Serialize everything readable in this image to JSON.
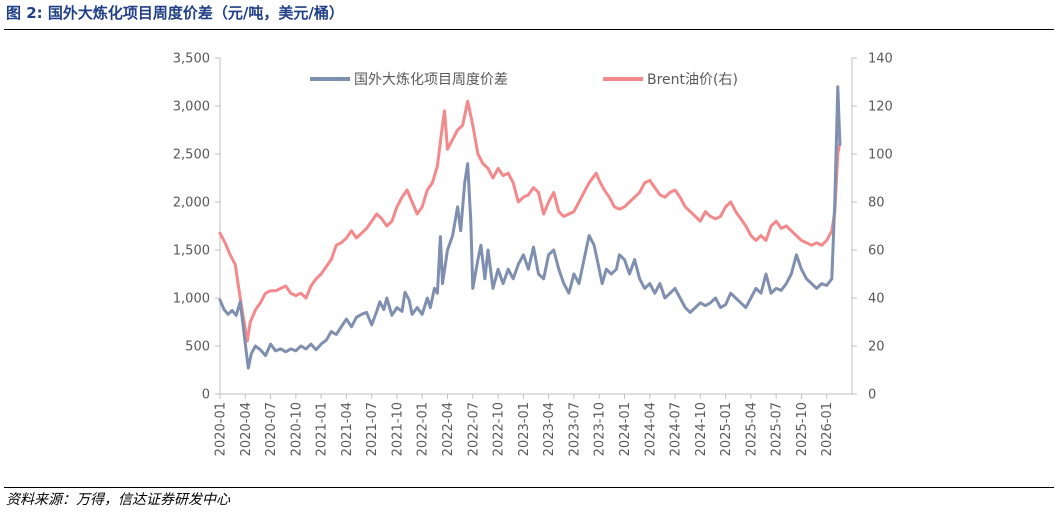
{
  "figure": {
    "title": "图 2:  国外大炼化项目周度价差（元/吨，美元/桶）",
    "source": "资料来源：万得，信达证券研发中心"
  },
  "colors": {
    "spread": "#7f8fb0",
    "brent": "#f4888a",
    "title": "#1f3f87",
    "axis": "#bfbfbf",
    "tick": "#595959"
  },
  "chart_data": {
    "type": "line",
    "title": "国外大炼化项目周度价差（元/吨，美元/桶）",
    "x_tick_labels": [
      "2020-01",
      "2020-04",
      "2020-07",
      "2020-10",
      "2021-01",
      "2021-04",
      "2021-07",
      "2021-10",
      "2022-01",
      "2022-04",
      "2022-07",
      "2022-10",
      "2023-01",
      "2023-04",
      "2023-07",
      "2023-10",
      "2024-01",
      "2024-04",
      "2024-07",
      "2024-10",
      "2025-01",
      "2025-04",
      "2025-07",
      "2025-10",
      "2026-01"
    ],
    "x_range": [
      2020.0,
      2026.25
    ],
    "y_left": {
      "label": "元/吨",
      "range": [
        0,
        3500
      ],
      "ticks": [
        0,
        500,
        1000,
        1500,
        2000,
        2500,
        3000,
        3500
      ],
      "tick_labels": [
        "0",
        "500",
        "1,000",
        "1,500",
        "2,000",
        "2,500",
        "3,000",
        "3,500"
      ]
    },
    "y_right": {
      "label": "美元/桶",
      "range": [
        0,
        140
      ],
      "ticks": [
        0,
        20,
        40,
        60,
        80,
        100,
        120,
        140
      ],
      "tick_labels": [
        "0",
        "20",
        "40",
        "60",
        "80",
        "100",
        "120",
        "140"
      ]
    },
    "legend": {
      "position": "top",
      "items": [
        "国外大炼化项目周度价差",
        "Brent油价(右)"
      ]
    },
    "series": [
      {
        "name": "国外大炼化项目周度价差",
        "axis": "left",
        "points": [
          [
            2020.0,
            980
          ],
          [
            2020.04,
            880
          ],
          [
            2020.08,
            830
          ],
          [
            2020.12,
            870
          ],
          [
            2020.16,
            820
          ],
          [
            2020.2,
            960
          ],
          [
            2020.23,
            700
          ],
          [
            2020.25,
            520
          ],
          [
            2020.28,
            270
          ],
          [
            2020.31,
            420
          ],
          [
            2020.35,
            500
          ],
          [
            2020.4,
            460
          ],
          [
            2020.45,
            400
          ],
          [
            2020.5,
            520
          ],
          [
            2020.55,
            450
          ],
          [
            2020.6,
            470
          ],
          [
            2020.65,
            440
          ],
          [
            2020.7,
            470
          ],
          [
            2020.75,
            450
          ],
          [
            2020.8,
            500
          ],
          [
            2020.85,
            470
          ],
          [
            2020.9,
            520
          ],
          [
            2020.95,
            460
          ],
          [
            2021.0,
            520
          ],
          [
            2021.05,
            560
          ],
          [
            2021.1,
            650
          ],
          [
            2021.15,
            620
          ],
          [
            2021.2,
            700
          ],
          [
            2021.25,
            780
          ],
          [
            2021.3,
            700
          ],
          [
            2021.35,
            800
          ],
          [
            2021.4,
            830
          ],
          [
            2021.45,
            850
          ],
          [
            2021.5,
            720
          ],
          [
            2021.55,
            860
          ],
          [
            2021.58,
            960
          ],
          [
            2021.62,
            880
          ],
          [
            2021.65,
            1000
          ],
          [
            2021.7,
            820
          ],
          [
            2021.75,
            900
          ],
          [
            2021.8,
            860
          ],
          [
            2021.83,
            1060
          ],
          [
            2021.87,
            980
          ],
          [
            2021.9,
            830
          ],
          [
            2021.95,
            900
          ],
          [
            2022.0,
            830
          ],
          [
            2022.05,
            1000
          ],
          [
            2022.08,
            900
          ],
          [
            2022.12,
            1100
          ],
          [
            2022.15,
            1050
          ],
          [
            2022.18,
            1640
          ],
          [
            2022.2,
            1150
          ],
          [
            2022.25,
            1500
          ],
          [
            2022.3,
            1650
          ],
          [
            2022.35,
            1950
          ],
          [
            2022.38,
            1700
          ],
          [
            2022.42,
            2200
          ],
          [
            2022.45,
            2400
          ],
          [
            2022.48,
            1800
          ],
          [
            2022.5,
            1100
          ],
          [
            2022.55,
            1400
          ],
          [
            2022.58,
            1550
          ],
          [
            2022.62,
            1200
          ],
          [
            2022.65,
            1500
          ],
          [
            2022.7,
            1100
          ],
          [
            2022.75,
            1300
          ],
          [
            2022.8,
            1150
          ],
          [
            2022.85,
            1300
          ],
          [
            2022.9,
            1200
          ],
          [
            2022.95,
            1350
          ],
          [
            2023.0,
            1450
          ],
          [
            2023.05,
            1300
          ],
          [
            2023.1,
            1530
          ],
          [
            2023.15,
            1250
          ],
          [
            2023.2,
            1200
          ],
          [
            2023.25,
            1450
          ],
          [
            2023.3,
            1500
          ],
          [
            2023.35,
            1300
          ],
          [
            2023.4,
            1150
          ],
          [
            2023.45,
            1050
          ],
          [
            2023.5,
            1250
          ],
          [
            2023.55,
            1150
          ],
          [
            2023.6,
            1400
          ],
          [
            2023.65,
            1650
          ],
          [
            2023.7,
            1550
          ],
          [
            2023.75,
            1300
          ],
          [
            2023.78,
            1150
          ],
          [
            2023.82,
            1300
          ],
          [
            2023.87,
            1250
          ],
          [
            2023.92,
            1300
          ],
          [
            2023.95,
            1450
          ],
          [
            2024.0,
            1400
          ],
          [
            2024.05,
            1250
          ],
          [
            2024.1,
            1400
          ],
          [
            2024.15,
            1200
          ],
          [
            2024.2,
            1100
          ],
          [
            2024.25,
            1150
          ],
          [
            2024.3,
            1050
          ],
          [
            2024.35,
            1150
          ],
          [
            2024.4,
            1000
          ],
          [
            2024.45,
            1050
          ],
          [
            2024.5,
            1100
          ],
          [
            2024.55,
            1000
          ],
          [
            2024.6,
            900
          ],
          [
            2024.65,
            850
          ],
          [
            2024.7,
            900
          ],
          [
            2024.75,
            950
          ],
          [
            2024.8,
            920
          ],
          [
            2024.85,
            950
          ],
          [
            2024.9,
            1000
          ],
          [
            2024.95,
            900
          ],
          [
            2025.0,
            930
          ],
          [
            2025.05,
            1050
          ],
          [
            2025.1,
            1000
          ],
          [
            2025.15,
            950
          ],
          [
            2025.2,
            900
          ],
          [
            2025.25,
            1000
          ],
          [
            2025.3,
            1100
          ],
          [
            2025.35,
            1050
          ],
          [
            2025.4,
            1250
          ],
          [
            2025.45,
            1050
          ],
          [
            2025.5,
            1100
          ],
          [
            2025.55,
            1080
          ],
          [
            2025.6,
            1150
          ],
          [
            2025.65,
            1250
          ],
          [
            2025.7,
            1450
          ],
          [
            2025.75,
            1300
          ],
          [
            2025.8,
            1200
          ],
          [
            2025.85,
            1150
          ],
          [
            2025.9,
            1100
          ],
          [
            2025.95,
            1150
          ],
          [
            2026.0,
            1130
          ],
          [
            2026.05,
            1200
          ],
          [
            2026.08,
            2000
          ],
          [
            2026.11,
            3200
          ],
          [
            2026.13,
            2600
          ]
        ]
      },
      {
        "name": "Brent油价(右)",
        "axis": "right",
        "points": [
          [
            2020.0,
            67
          ],
          [
            2020.05,
            63
          ],
          [
            2020.1,
            58
          ],
          [
            2020.15,
            54
          ],
          [
            2020.2,
            40
          ],
          [
            2020.23,
            32
          ],
          [
            2020.27,
            22
          ],
          [
            2020.3,
            30
          ],
          [
            2020.35,
            35
          ],
          [
            2020.4,
            38
          ],
          [
            2020.45,
            42
          ],
          [
            2020.5,
            43
          ],
          [
            2020.55,
            43
          ],
          [
            2020.6,
            44
          ],
          [
            2020.65,
            45
          ],
          [
            2020.7,
            42
          ],
          [
            2020.75,
            41
          ],
          [
            2020.8,
            42
          ],
          [
            2020.85,
            40
          ],
          [
            2020.9,
            45
          ],
          [
            2020.95,
            48
          ],
          [
            2021.0,
            50
          ],
          [
            2021.05,
            53
          ],
          [
            2021.1,
            56
          ],
          [
            2021.15,
            62
          ],
          [
            2021.2,
            63
          ],
          [
            2021.25,
            65
          ],
          [
            2021.3,
            68
          ],
          [
            2021.35,
            65
          ],
          [
            2021.4,
            67
          ],
          [
            2021.45,
            69
          ],
          [
            2021.5,
            72
          ],
          [
            2021.55,
            75
          ],
          [
            2021.6,
            73
          ],
          [
            2021.65,
            70
          ],
          [
            2021.7,
            72
          ],
          [
            2021.75,
            78
          ],
          [
            2021.8,
            82
          ],
          [
            2021.85,
            85
          ],
          [
            2021.9,
            80
          ],
          [
            2021.95,
            75
          ],
          [
            2022.0,
            78
          ],
          [
            2022.05,
            85
          ],
          [
            2022.1,
            88
          ],
          [
            2022.15,
            95
          ],
          [
            2022.2,
            112
          ],
          [
            2022.22,
            118
          ],
          [
            2022.25,
            102
          ],
          [
            2022.3,
            106
          ],
          [
            2022.35,
            110
          ],
          [
            2022.4,
            112
          ],
          [
            2022.45,
            122
          ],
          [
            2022.5,
            112
          ],
          [
            2022.55,
            100
          ],
          [
            2022.6,
            96
          ],
          [
            2022.65,
            94
          ],
          [
            2022.7,
            90
          ],
          [
            2022.75,
            94
          ],
          [
            2022.8,
            91
          ],
          [
            2022.85,
            92
          ],
          [
            2022.9,
            88
          ],
          [
            2022.95,
            80
          ],
          [
            2023.0,
            82
          ],
          [
            2023.05,
            83
          ],
          [
            2023.1,
            86
          ],
          [
            2023.15,
            84
          ],
          [
            2023.2,
            75
          ],
          [
            2023.25,
            80
          ],
          [
            2023.3,
            84
          ],
          [
            2023.35,
            76
          ],
          [
            2023.4,
            74
          ],
          [
            2023.45,
            75
          ],
          [
            2023.5,
            76
          ],
          [
            2023.55,
            80
          ],
          [
            2023.6,
            84
          ],
          [
            2023.65,
            88
          ],
          [
            2023.72,
            92
          ],
          [
            2023.75,
            89
          ],
          [
            2023.8,
            85
          ],
          [
            2023.85,
            82
          ],
          [
            2023.9,
            78
          ],
          [
            2023.95,
            77
          ],
          [
            2024.0,
            78
          ],
          [
            2024.05,
            80
          ],
          [
            2024.1,
            82
          ],
          [
            2024.15,
            84
          ],
          [
            2024.2,
            88
          ],
          [
            2024.25,
            89
          ],
          [
            2024.3,
            86
          ],
          [
            2024.35,
            83
          ],
          [
            2024.4,
            82
          ],
          [
            2024.45,
            84
          ],
          [
            2024.5,
            85
          ],
          [
            2024.55,
            82
          ],
          [
            2024.6,
            78
          ],
          [
            2024.65,
            76
          ],
          [
            2024.7,
            74
          ],
          [
            2024.75,
            72
          ],
          [
            2024.8,
            76
          ],
          [
            2024.85,
            74
          ],
          [
            2024.9,
            73
          ],
          [
            2024.95,
            74
          ],
          [
            2025.0,
            78
          ],
          [
            2025.05,
            80
          ],
          [
            2025.1,
            76
          ],
          [
            2025.15,
            73
          ],
          [
            2025.2,
            70
          ],
          [
            2025.25,
            66
          ],
          [
            2025.3,
            64
          ],
          [
            2025.35,
            66
          ],
          [
            2025.4,
            64
          ],
          [
            2025.45,
            70
          ],
          [
            2025.5,
            72
          ],
          [
            2025.55,
            69
          ],
          [
            2025.6,
            70
          ],
          [
            2025.65,
            68
          ],
          [
            2025.7,
            66
          ],
          [
            2025.75,
            64
          ],
          [
            2025.8,
            63
          ],
          [
            2025.85,
            62
          ],
          [
            2025.9,
            63
          ],
          [
            2025.95,
            62
          ],
          [
            2026.0,
            64
          ],
          [
            2026.05,
            68
          ],
          [
            2026.08,
            76
          ],
          [
            2026.11,
            100
          ],
          [
            2026.13,
            105
          ]
        ]
      }
    ]
  }
}
